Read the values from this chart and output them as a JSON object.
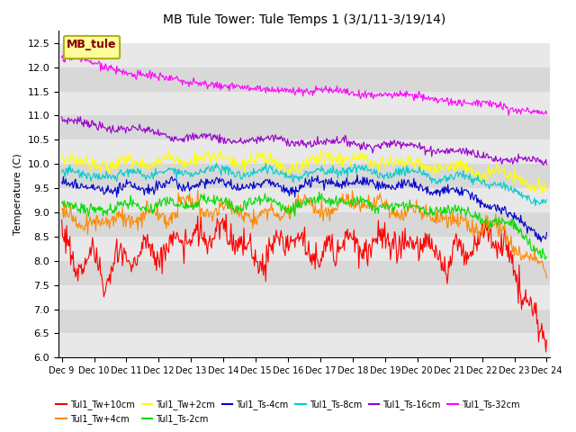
{
  "title": "MB Tule Tower: Tule Temps 1 (3/1/11-3/19/14)",
  "ylabel": "Temperature (C)",
  "legend_label": "MB_tule",
  "ylim": [
    6.0,
    12.75
  ],
  "yticks": [
    6.0,
    6.5,
    7.0,
    7.5,
    8.0,
    8.5,
    9.0,
    9.5,
    10.0,
    10.5,
    11.0,
    11.5,
    12.0,
    12.5
  ],
  "x_tick_labels": [
    "Dec 9",
    "Dec 10",
    "Dec 11",
    "Dec 12",
    "Dec 13",
    "Dec 14",
    "Dec 15",
    "Dec 16",
    "Dec 17",
    "Dec 18",
    "Dec 19",
    "Dec 20",
    "Dec 21",
    "Dec 22",
    "Dec 23",
    "Dec 24"
  ],
  "series": [
    {
      "name": "Tul1_Tw+10cm",
      "color": "#ff0000"
    },
    {
      "name": "Tul1_Tw+4cm",
      "color": "#ff8800"
    },
    {
      "name": "Tul1_Tw+2cm",
      "color": "#ffff00"
    },
    {
      "name": "Tul1_Ts-2cm",
      "color": "#00dd00"
    },
    {
      "name": "Tul1_Ts-4cm",
      "color": "#0000cc"
    },
    {
      "name": "Tul1_Ts-8cm",
      "color": "#00cccc"
    },
    {
      "name": "Tul1_Ts-16cm",
      "color": "#9900cc"
    },
    {
      "name": "Tul1_Ts-32cm",
      "color": "#ff00ff"
    }
  ],
  "band_colors": [
    "#e8e8e8",
    "#d8d8d8"
  ],
  "n_points": 600
}
